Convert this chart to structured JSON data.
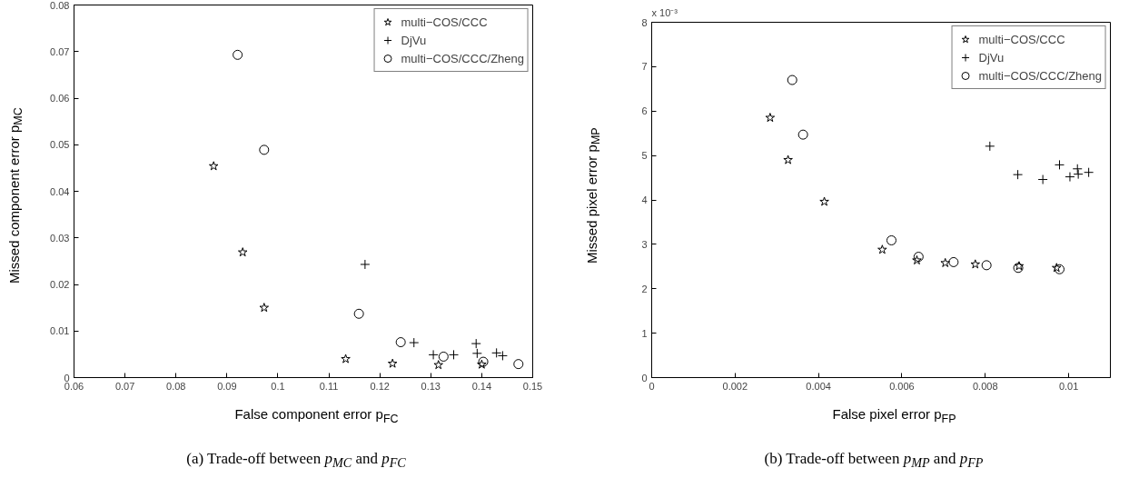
{
  "chart_data": [
    {
      "type": "scatter",
      "xlabel": "False component error p$_{FC}$",
      "ylabel": "Missed component error p$_{MC}$",
      "annotations": [
        "(a) Trade-off between p$_{MC}$ and p$_{FC}$"
      ],
      "xlim": [
        0.06,
        0.15
      ],
      "xticks": [
        0.06,
        0.07,
        0.08,
        0.09,
        0.1,
        0.11,
        0.12,
        0.13,
        0.14,
        0.15
      ],
      "ylim": [
        0,
        0.08
      ],
      "yticks": [
        0,
        0.01,
        0.02,
        0.03,
        0.04,
        0.05,
        0.06,
        0.07,
        0.08
      ],
      "grid": false,
      "legend": "top right",
      "series": [
        {
          "name": "multi−COS/CCC",
          "color": "#000000",
          "marker": "star",
          "x": [
            0.0874,
            0.0931,
            0.0973,
            0.1133,
            0.1225,
            0.1315,
            0.14
          ],
          "values": [
            0.0454,
            0.0269,
            0.015,
            0.004,
            0.003,
            0.0027,
            0.0028
          ]
        },
        {
          "name": "DjVu",
          "color": "#000000",
          "marker": "cross",
          "x": [
            0.1171,
            0.1267,
            0.1305,
            0.1345,
            0.1389,
            0.1391,
            0.1429,
            0.1441
          ],
          "values": [
            0.0243,
            0.0075,
            0.0049,
            0.0049,
            0.0073,
            0.0052,
            0.0053,
            0.0047
          ]
        },
        {
          "name": "multi−COS/CCC/Zheng",
          "color": "#000000",
          "marker": "circle",
          "x": [
            0.0921,
            0.0973,
            0.1159,
            0.1241,
            0.1325,
            0.1403,
            0.1472
          ],
          "values": [
            0.0693,
            0.0489,
            0.0137,
            0.0076,
            0.0045,
            0.0034,
            0.0029
          ]
        }
      ]
    },
    {
      "type": "scatter",
      "xlabel": "False pixel error p$_{FP}$",
      "ylabel": "Missed pixel error p$_{MP}$",
      "annotations": [
        "x 10⁻³",
        "(b) Trade-off between p$_{MP}$ and p$_{FP}$"
      ],
      "xlim": [
        0,
        0.011
      ],
      "xticks": [
        0,
        0.002,
        0.004,
        0.006,
        0.008,
        0.01
      ],
      "ylim": [
        0,
        8
      ],
      "yticks": [
        0,
        1,
        2,
        3,
        4,
        5,
        6,
        7,
        8
      ],
      "grid": false,
      "legend": "top right",
      "series": [
        {
          "name": "multi−COS/CCC",
          "color": "#000000",
          "marker": "star",
          "x": [
            0.00284,
            0.00327,
            0.00414,
            0.00553,
            0.00636,
            0.00704,
            0.00776,
            0.00881,
            0.00971
          ],
          "values": [
            5.85,
            4.9,
            3.96,
            2.88,
            2.64,
            2.58,
            2.55,
            2.51,
            2.47
          ]
        },
        {
          "name": "DjVu",
          "color": "#000000",
          "marker": "cross",
          "x": [
            0.00811,
            0.00878,
            0.00938,
            0.00978,
            0.01003,
            0.01021,
            0.01023,
            0.01048
          ],
          "values": [
            5.21,
            4.57,
            4.46,
            4.79,
            4.52,
            4.7,
            4.58,
            4.62
          ]
        },
        {
          "name": "multi−COS/CCC/Zheng",
          "color": "#000000",
          "marker": "circle",
          "x": [
            0.00337,
            0.00363,
            0.00575,
            0.0064,
            0.00724,
            0.00803,
            0.00879,
            0.00978
          ],
          "values": [
            6.7,
            5.47,
            3.09,
            2.72,
            2.6,
            2.53,
            2.47,
            2.44
          ]
        }
      ]
    }
  ]
}
